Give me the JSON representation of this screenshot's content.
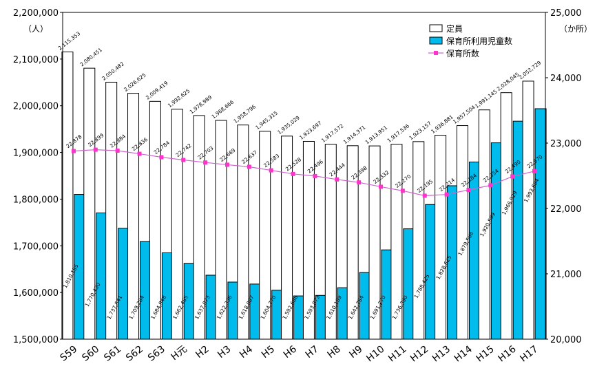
{
  "chart_data": {
    "type": "bar",
    "categories": [
      "S59",
      "S60",
      "S61",
      "S62",
      "S63",
      "H元",
      "H2",
      "H3",
      "H4",
      "H5",
      "H6",
      "H7",
      "H8",
      "H9",
      "H10",
      "H11",
      "H12",
      "H13",
      "H14",
      "H15",
      "H16",
      "H17"
    ],
    "y_left_unit": "（人）",
    "y_right_unit": "（か所）",
    "ylim_left": [
      1500000,
      2200000
    ],
    "ylim_right": [
      20000,
      25000
    ],
    "y_left_ticks": [
      "1,500,000",
      "1,600,000",
      "1,700,000",
      "1,800,000",
      "1,900,000",
      "2,000,000",
      "2,100,000",
      "2,200,000"
    ],
    "y_right_ticks": [
      "20,000",
      "21,000",
      "22,000",
      "23,000",
      "24,000",
      "25,000"
    ],
    "legend": {
      "position": "top-right"
    },
    "colors": {
      "capacity": "#ffffff",
      "children": "#00bcec",
      "nurseries": "#ff33cc",
      "line": "#cc66cc"
    },
    "series": [
      {
        "name": "定員",
        "axis": "left",
        "kind": "bar",
        "values": [
          2115353,
          2080451,
          2050482,
          2026625,
          2009419,
          1992625,
          1978989,
          1968666,
          1958796,
          1945315,
          1935029,
          1923697,
          1917572,
          1914371,
          1913951,
          1917536,
          1923157,
          1936881,
          1957504,
          1991145,
          2028045,
          2052729
        ],
        "labels": [
          "2,115,353",
          "2,080,451",
          "2,050,482",
          "2,026,625",
          "2,009,419",
          "1,992,625",
          "1,978,989",
          "1,968,666",
          "1,958,796",
          "1,945,315",
          "1,935,029",
          "1,923,697",
          "1,917,572",
          "1,914,371",
          "1,913,951",
          "1,917,536",
          "1,923,157",
          "1,936,881",
          "1,957,504",
          "1,991,145",
          "2,028,045",
          "2,052,729"
        ]
      },
      {
        "name": "保育所利用児童数",
        "axis": "left",
        "kind": "bar",
        "values": [
          1810155,
          1770430,
          1737541,
          1709284,
          1684948,
          1662465,
          1637073,
          1622336,
          1618087,
          1604770,
          1592688,
          1593873,
          1610189,
          1642754,
          1691270,
          1736390,
          1788425,
          1828625,
          1879568,
          1920599,
          1966929,
          1993684
        ],
        "labels": [
          "1,810,155",
          "1,770,430",
          "1,737,541",
          "1,709,284",
          "1,684,948",
          "1,662,465",
          "1,637,073",
          "1,622,336",
          "1,618,087",
          "1,604,770",
          "1,592,688",
          "1,593,873",
          "1,610,189",
          "1,642,754",
          "1,691,270",
          "1,736,390",
          "1,788,425",
          "1,828,625",
          "1,879,568",
          "1,920,599",
          "1,966,929",
          "1,993,684"
        ]
      },
      {
        "name": "保育所数",
        "axis": "right",
        "kind": "line",
        "values": [
          22878,
          22899,
          22884,
          22836,
          22784,
          22742,
          22703,
          22669,
          22637,
          22583,
          22528,
          22496,
          22444,
          22398,
          22332,
          22270,
          22195,
          22214,
          22284,
          22354,
          22490,
          22570
        ],
        "labels": [
          "22,878",
          "22,899",
          "22,884",
          "22,836",
          "22,784",
          "22,742",
          "22,703",
          "22,669",
          "22,637",
          "22,583",
          "22,528",
          "22,496",
          "22,444",
          "22,398",
          "22,332",
          "22,270",
          "22,195",
          "22,214",
          "22,284",
          "22,354",
          "22,490",
          "22,570"
        ]
      }
    ]
  }
}
